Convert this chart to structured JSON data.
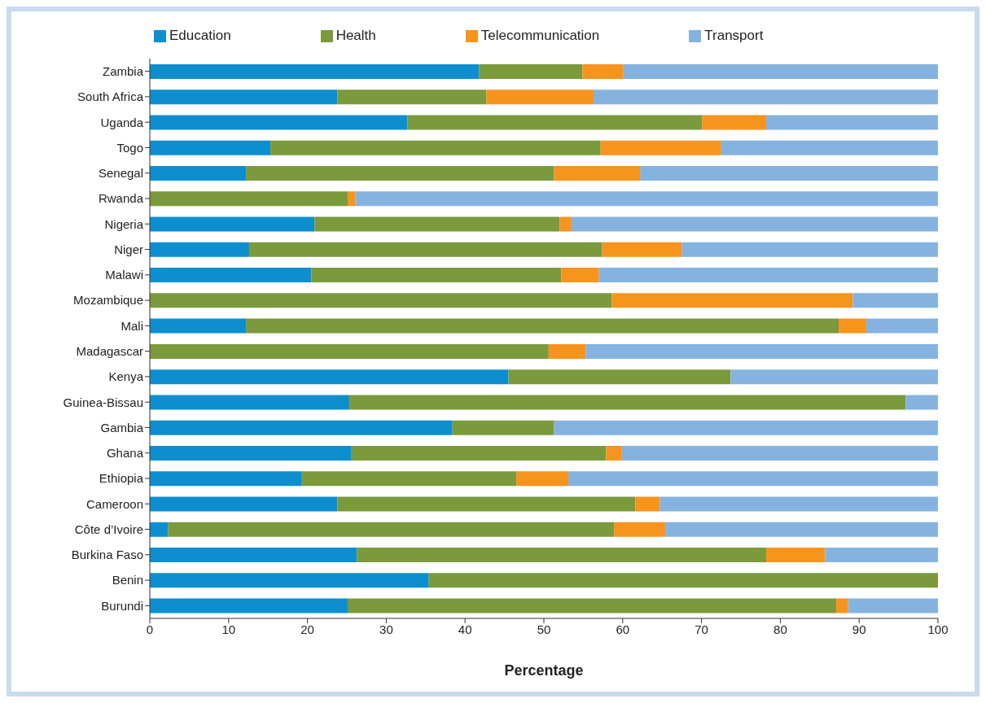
{
  "chart_data": {
    "type": "bar",
    "orientation": "horizontal",
    "stacked": true,
    "xlabel": "Percentage",
    "legend": "top",
    "categories": [
      "Zambia",
      "South Africa",
      "Uganda",
      "Togo",
      "Senegal",
      "Rwanda",
      "Nigeria",
      "Niger",
      "Malawi",
      "Mozambique",
      "Mali",
      "Madagascar",
      "Kenya",
      "Guinea-Bissau",
      "Gambia",
      "Ghana",
      "Ethiopia",
      "Cameroon",
      "Côte d’Ivoire",
      "Burkina Faso",
      "Benin",
      "Burundi"
    ],
    "series": [
      {
        "name": "Education",
        "color": "#0d8fcf",
        "values": [
          41.8,
          23.8,
          32.7,
          15.3,
          12.2,
          0,
          20.9,
          12.6,
          20.5,
          0,
          12.2,
          0,
          45.5,
          25.3,
          38.4,
          25.6,
          19.3,
          23.8,
          2.3,
          26.3,
          35.4,
          25.1
        ]
      },
      {
        "name": "Health",
        "color": "#7a9a3c",
        "values": [
          13.1,
          18.9,
          37.4,
          41.9,
          39.1,
          25.1,
          31.1,
          44.8,
          31.7,
          58.6,
          75.2,
          50.6,
          28.2,
          70.6,
          12.9,
          32.3,
          27.2,
          37.8,
          56.6,
          51.9,
          64.6,
          62.0
        ]
      },
      {
        "name": "Telecommunication",
        "color": "#f7941e",
        "values": [
          5.2,
          13.6,
          8.1,
          15.3,
          10.9,
          1.0,
          1.5,
          10.1,
          4.8,
          30.6,
          3.5,
          4.7,
          0,
          0,
          0,
          2.0,
          6.6,
          3.1,
          6.5,
          7.5,
          0,
          1.5
        ]
      },
      {
        "name": "Transport",
        "color": "#85b3e0",
        "values": [
          39.9,
          43.7,
          21.8,
          27.5,
          37.8,
          73.9,
          46.5,
          32.5,
          43.0,
          10.8,
          9.1,
          44.7,
          26.3,
          4.1,
          48.7,
          40.1,
          46.9,
          35.3,
          34.6,
          14.3,
          0,
          11.4
        ]
      }
    ],
    "xlim": [
      0,
      100
    ],
    "xticks": [
      0,
      10,
      20,
      30,
      40,
      50,
      60,
      70,
      80,
      90,
      100
    ]
  }
}
